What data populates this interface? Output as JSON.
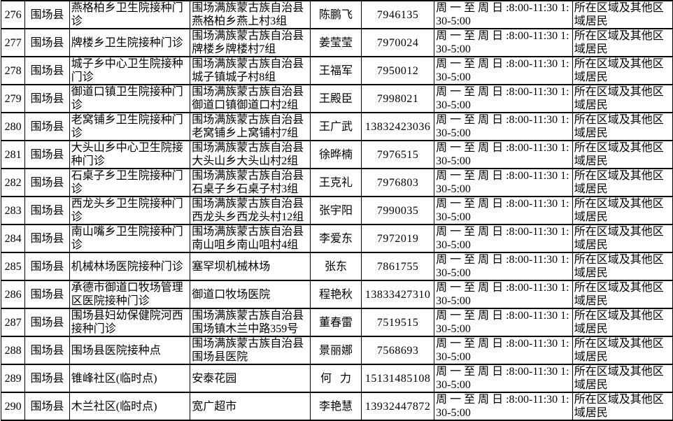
{
  "colors": {
    "background": "#ffffff",
    "border": "#000000",
    "text": "#000000"
  },
  "table": {
    "fields": [
      "id",
      "county",
      "clinic",
      "address",
      "contact",
      "phone",
      "hours",
      "service_area"
    ],
    "rows": [
      {
        "id": "276",
        "county": "围场县",
        "clinic": "燕格柏乡卫生院接种门诊",
        "address": "围场满族蒙古族自治县燕格柏乡燕上村3组",
        "contact": "陈鹏飞",
        "phone": "7946135",
        "hours": "周 一 至 周 日 :8:00-11:30 1:30-5:00",
        "service_area": "所在区域及其他区域居民"
      },
      {
        "id": "277",
        "county": "围场县",
        "clinic": "牌楼乡卫生院接种门诊",
        "address": "围场满族蒙古族自治县牌楼乡牌楼村7组",
        "contact": "姜莹莹",
        "phone": "7970024",
        "hours": "周 一 至 周 日 :8:00-11:30 1:30-5:00",
        "service_area": "所在区域及其他区域居民"
      },
      {
        "id": "278",
        "county": "围场县",
        "clinic": "城子乡中心卫生院接种门诊",
        "address": "围场满族蒙古族自治县城子镇城子村8组",
        "contact": "王福军",
        "phone": "7950012",
        "hours": "周 一 至 周 日 :8:00-11:30 1:30-5:00",
        "service_area": "所在区域及其他区域居民"
      },
      {
        "id": "279",
        "county": "围场县",
        "clinic": "御道口镇卫生院接种门诊",
        "address": "围场满族蒙古族自治县御道口镇御道口村2组",
        "contact": "王殿臣",
        "phone": "7998021",
        "hours": "周 一 至 周 日 :8:00-11:30 1:30-5:00",
        "service_area": "所在区域及其他区域居民"
      },
      {
        "id": "280",
        "county": "围场县",
        "clinic": "老窝铺乡卫生院接种门诊",
        "address": "围场满族蒙古族自治县老窝铺乡上窝铺村7组",
        "contact": "王广武",
        "phone": "13832423036",
        "hours": "周 一 至 周 日 :8:00-11:30 1:30-5:00",
        "service_area": "所在区域及其他区域居民"
      },
      {
        "id": "281",
        "county": "围场县",
        "clinic": "大头山乡中心卫生院接种门诊",
        "address": "围场满族蒙古族自治县大头山乡大头山村2组",
        "contact": "徐晔楠",
        "phone": "7976515",
        "hours": "周 一 至 周 日 :8:00-11:30 1:30-5:00",
        "service_area": "所在区域及其他区域居民"
      },
      {
        "id": "282",
        "county": "围场县",
        "clinic": "石桌子乡卫生院接种门诊",
        "address": "围场满族蒙古族自治县石桌子乡石桌子村3组",
        "contact": "王克礼",
        "phone": "7976803",
        "hours": "周 一 至 周 日 :8:00-11:30 1:30-5:00",
        "service_area": "所在区域及其他区域居民"
      },
      {
        "id": "283",
        "county": "围场县",
        "clinic": "西龙头乡卫生院接种门诊",
        "address": "围场满族蒙古族自治县西龙头乡西龙头村12组",
        "contact": "张宇阳",
        "phone": "7990035",
        "hours": "周 一 至 周 日 :8:00-11:30 1:30-5:00",
        "service_area": "所在区域及其他区域居民"
      },
      {
        "id": "284",
        "county": "围场县",
        "clinic": "南山嘴乡卫生院接种门诊",
        "address": "围场满族蒙古族自治县南山咀乡南山咀村4组",
        "contact": "李爱东",
        "phone": "7972019",
        "hours": "周 一 至 周 日 :8:00-11:30 1:30-5:00",
        "service_area": "所在区域及其他区域居民"
      },
      {
        "id": "285",
        "county": "围场县",
        "clinic": "机械林场医院接种门诊",
        "address": "塞罕坝机械林场",
        "contact": "张东",
        "phone": "7861755",
        "hours": "周 一 至 周 日 :8:00-11:30 1:30-5:00",
        "service_area": "所在区域及其他区域居民"
      },
      {
        "id": "286",
        "county": "围场县",
        "clinic": "承德市御道口牧场管理区医院接种门诊",
        "address": "御道口牧场医院",
        "contact": "程艳秋",
        "phone": "13833427310",
        "hours": "周 一 至 周 日 :8:00-11:30 1:30-5:00",
        "service_area": "所在区域及其他区域居民"
      },
      {
        "id": "287",
        "county": "围场县",
        "clinic": "围场县妇幼保健院河西接种门诊",
        "address": "围场满族蒙古族自治县围场镇木兰中路359号",
        "contact": "董春雷",
        "phone": "7519515",
        "hours": "周 一 至 周 日 :8:00-11:30 1:30-5:00",
        "service_area": "所在区域及其他区域居民"
      },
      {
        "id": "288",
        "county": "围场县",
        "clinic": "围场县医院接种点",
        "address": "围场满族蒙古族自治县围场县医院",
        "contact": "景丽娜",
        "phone": "7568693",
        "hours": "周 一 至 周 日 :8:00-11:30 1:30-5:00",
        "service_area": "所在区域及其他区域居民"
      },
      {
        "id": "289",
        "county": "围场县",
        "clinic": "锥峰社区(临时点)",
        "address": "安泰花园",
        "contact": "何   力",
        "phone": "15131485108",
        "hours": "周 一 至 周 日 :8:00-11:30 1:30-5:00",
        "service_area": "所在区域及其他区域居民"
      },
      {
        "id": "290",
        "county": "围场县",
        "clinic": "木兰社区(临时点)",
        "address": "宽广超市",
        "contact": "李艳慧",
        "phone": "13932447872",
        "hours": "周 一 至 周 日 :8:00-11:30 1:30-5:00",
        "service_area": "所在区域及其他区域居民"
      }
    ]
  }
}
